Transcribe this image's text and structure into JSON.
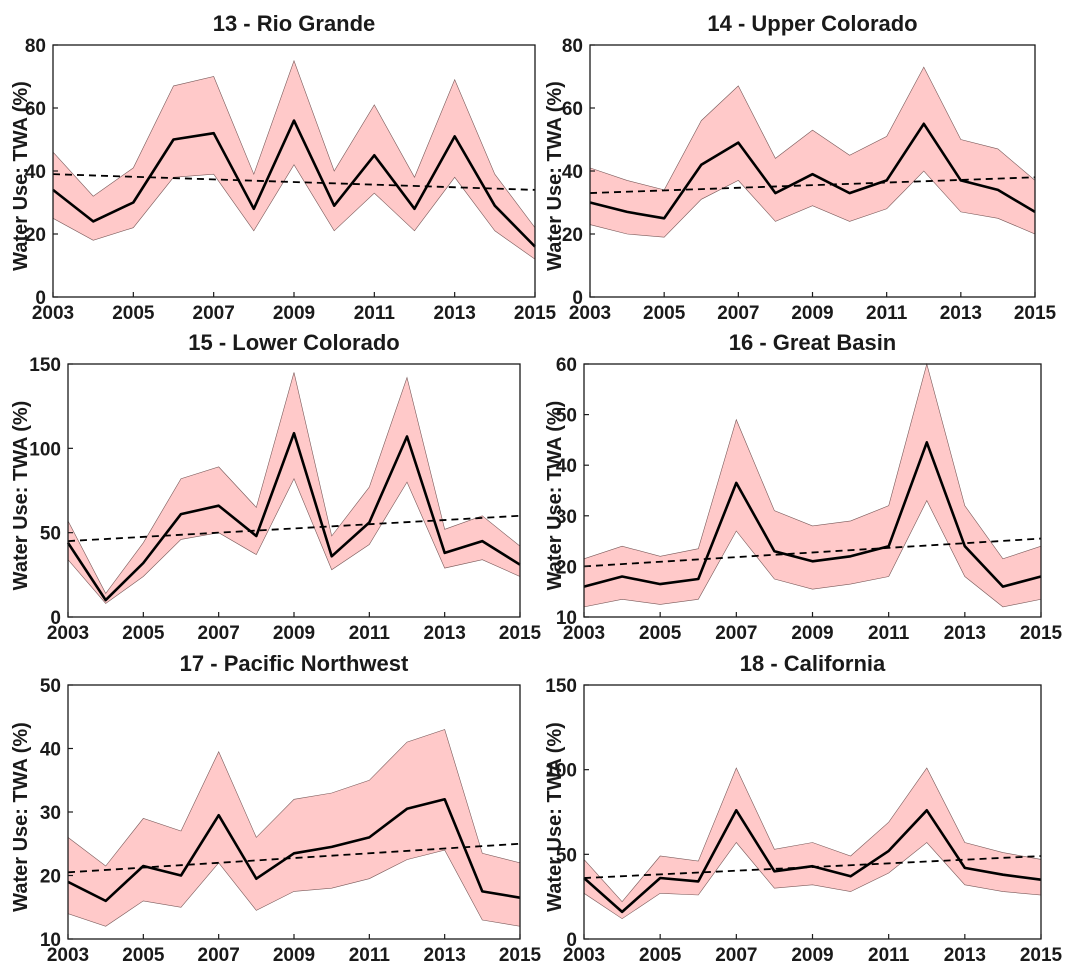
{
  "chart_data": [
    {
      "type": "line",
      "title": "13 - Rio Grande",
      "ylabel": "Water Use: TWA (%)",
      "xlabel": "",
      "x": [
        2003,
        2004,
        2005,
        2006,
        2007,
        2008,
        2009,
        2010,
        2011,
        2012,
        2013,
        2014,
        2015
      ],
      "xlim": [
        2003,
        2015
      ],
      "ylim": [
        0,
        80
      ],
      "xticks": [
        "2003",
        "2005",
        "2007",
        "2009",
        "2011",
        "2013",
        "2015"
      ],
      "yticks": [
        "0",
        "20",
        "40",
        "60",
        "80"
      ],
      "mean": [
        34,
        24,
        30,
        50,
        52,
        28,
        56,
        29,
        45,
        28,
        51,
        29,
        16
      ],
      "upper": [
        46,
        32,
        41,
        67,
        70,
        39,
        75,
        40,
        61,
        38,
        69,
        39,
        22
      ],
      "lower": [
        25,
        18,
        22,
        38,
        39,
        21,
        42,
        21,
        33,
        21,
        38,
        21,
        12
      ],
      "trend": [
        39,
        34
      ],
      "grid": false
    },
    {
      "type": "line",
      "title": "14 - Upper Colorado",
      "ylabel": "Water Use: TWA (%)",
      "xlabel": "",
      "x": [
        2003,
        2004,
        2005,
        2006,
        2007,
        2008,
        2009,
        2010,
        2011,
        2012,
        2013,
        2014,
        2015
      ],
      "xlim": [
        2003,
        2015
      ],
      "ylim": [
        0,
        80
      ],
      "xticks": [
        "2003",
        "2005",
        "2007",
        "2009",
        "2011",
        "2013",
        "2015"
      ],
      "yticks": [
        "0",
        "20",
        "40",
        "60",
        "80"
      ],
      "mean": [
        30,
        27,
        25,
        42,
        49,
        33,
        39,
        33,
        37,
        55,
        37,
        34,
        27
      ],
      "upper": [
        41,
        37,
        34,
        56,
        67,
        44,
        53,
        45,
        51,
        73,
        50,
        47,
        37
      ],
      "lower": [
        23,
        20,
        19,
        31,
        37,
        24,
        29,
        24,
        28,
        40,
        27,
        25,
        20
      ],
      "trend": [
        33,
        38
      ],
      "grid": false
    },
    {
      "type": "line",
      "title": "15 - Lower Colorado",
      "ylabel": "Water Use: TWA (%)",
      "xlabel": "",
      "x": [
        2003,
        2004,
        2005,
        2006,
        2007,
        2008,
        2009,
        2010,
        2011,
        2012,
        2013,
        2014,
        2015
      ],
      "xlim": [
        2003,
        2015
      ],
      "ylim": [
        0,
        150
      ],
      "xticks": [
        "2003",
        "2005",
        "2007",
        "2009",
        "2011",
        "2013",
        "2015"
      ],
      "yticks": [
        "0",
        "50",
        "100",
        "150"
      ],
      "mean": [
        44,
        10,
        32,
        61,
        66,
        48,
        109,
        36,
        56,
        107,
        38,
        45,
        31
      ],
      "upper": [
        57,
        14,
        44,
        82,
        89,
        65,
        145,
        48,
        77,
        142,
        52,
        60,
        42
      ],
      "lower": [
        34,
        8,
        24,
        46,
        50,
        37,
        82,
        28,
        43,
        80,
        29,
        34,
        24
      ],
      "trend": [
        45,
        60
      ],
      "grid": false
    },
    {
      "type": "line",
      "title": "16 - Great Basin",
      "ylabel": "Water Use: TWA (%)",
      "xlabel": "",
      "x": [
        2003,
        2004,
        2005,
        2006,
        2007,
        2008,
        2009,
        2010,
        2011,
        2012,
        2013,
        2014,
        2015
      ],
      "xlim": [
        2003,
        2015
      ],
      "ylim": [
        10,
        60
      ],
      "xticks": [
        "2003",
        "2005",
        "2007",
        "2009",
        "2011",
        "2013",
        "2015"
      ],
      "yticks": [
        "10",
        "20",
        "30",
        "40",
        "50",
        "60"
      ],
      "mean": [
        16,
        18,
        16.5,
        17.5,
        36.5,
        23,
        21,
        22,
        24,
        44.5,
        24,
        16,
        18
      ],
      "upper": [
        21.5,
        24,
        22,
        23.5,
        49,
        31,
        28,
        29,
        32,
        60,
        32,
        21.5,
        24
      ],
      "lower": [
        12,
        13.5,
        12.5,
        13.5,
        27,
        17.5,
        15.5,
        16.5,
        18,
        33,
        18,
        12,
        13.5
      ],
      "trend": [
        20,
        25.5
      ],
      "grid": false
    },
    {
      "type": "line",
      "title": "17 - Pacific Northwest",
      "ylabel": "Water Use: TWA (%)",
      "xlabel": "",
      "x": [
        2003,
        2004,
        2005,
        2006,
        2007,
        2008,
        2009,
        2010,
        2011,
        2012,
        2013,
        2014,
        2015
      ],
      "xlim": [
        2003,
        2015
      ],
      "ylim": [
        10,
        50
      ],
      "xticks": [
        "2003",
        "2005",
        "2007",
        "2009",
        "2011",
        "2013",
        "2015"
      ],
      "yticks": [
        "10",
        "20",
        "30",
        "40",
        "50"
      ],
      "mean": [
        19,
        16,
        21.5,
        20,
        29.5,
        19.5,
        23.5,
        24.5,
        26,
        30.5,
        32,
        17.5,
        16.5
      ],
      "upper": [
        26,
        21.5,
        29,
        27,
        39.5,
        26,
        32,
        33,
        35,
        41,
        43,
        23.5,
        22
      ],
      "lower": [
        14,
        12,
        16,
        15,
        22,
        14.5,
        17.5,
        18,
        19.5,
        22.5,
        24,
        13,
        12
      ],
      "trend": [
        20.5,
        25
      ],
      "grid": false
    },
    {
      "type": "line",
      "title": "18 - California",
      "ylabel": "Water Use: TWA (%)",
      "xlabel": "",
      "x": [
        2003,
        2004,
        2005,
        2006,
        2007,
        2008,
        2009,
        2010,
        2011,
        2012,
        2013,
        2014,
        2015
      ],
      "xlim": [
        2003,
        2015
      ],
      "ylim": [
        0,
        150
      ],
      "xticks": [
        "2003",
        "2005",
        "2007",
        "2009",
        "2011",
        "2013",
        "2015"
      ],
      "yticks": [
        "0",
        "50",
        "100",
        "150"
      ],
      "mean": [
        36,
        16,
        36,
        34,
        76,
        40,
        43,
        37,
        52,
        76,
        42,
        38,
        35
      ],
      "upper": [
        47,
        22,
        49,
        46,
        101,
        53,
        57,
        49,
        69,
        101,
        57,
        51,
        47
      ],
      "lower": [
        27,
        12,
        27,
        26,
        57,
        30,
        32,
        28,
        39,
        57,
        32,
        28,
        26
      ],
      "trend": [
        36,
        49
      ],
      "grid": false
    }
  ],
  "colors": {
    "band_fill": "#ffc9c9",
    "band_edge": "#7a5a5a",
    "mean_line": "#000000",
    "trend_line": "#000000",
    "axis": "#1a1a1a"
  }
}
